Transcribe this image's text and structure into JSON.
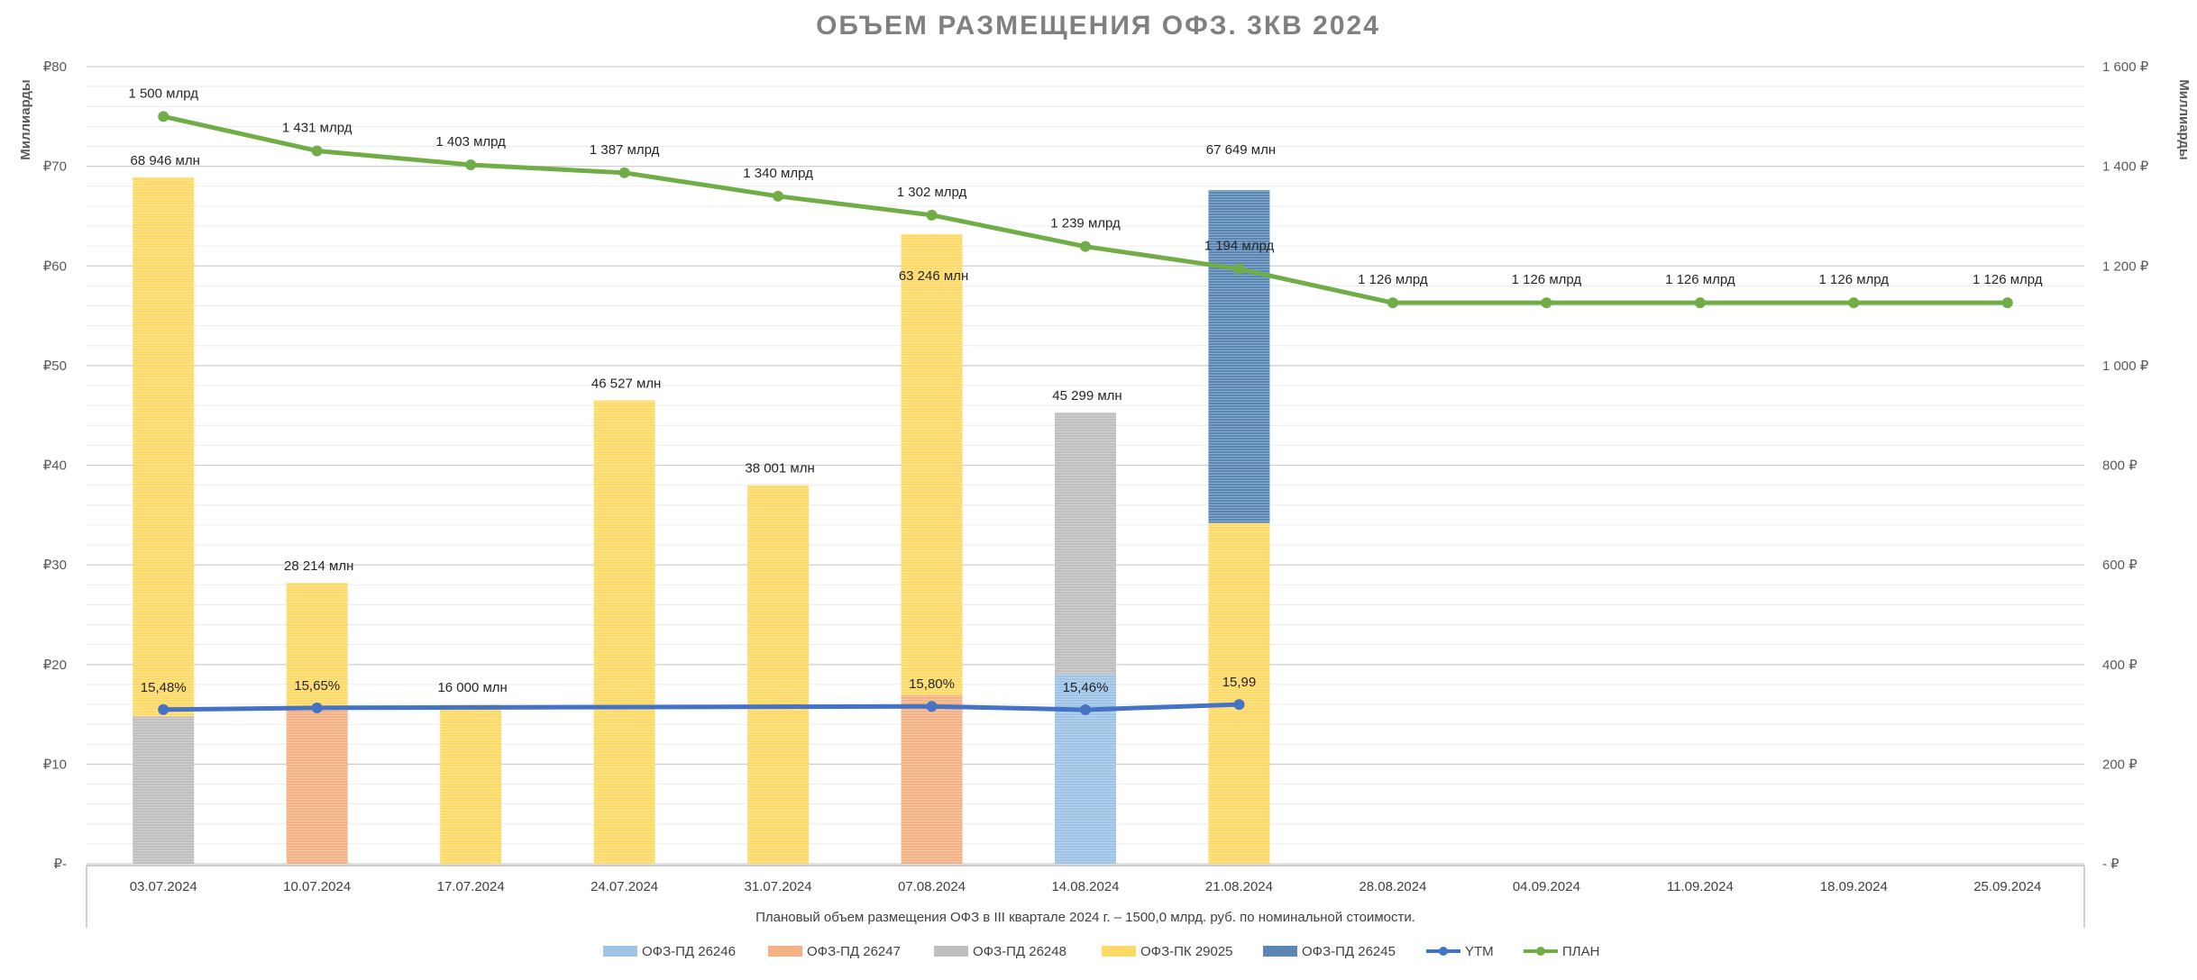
{
  "chart_data": {
    "type": "bar",
    "title": "ОБЪЕМ РАЗМЕЩЕНИЯ ОФЗ. 3КВ 2024",
    "ylabel_left": "Миллиарды",
    "ylabel_right": "Миллиарды",
    "ylim_left": [
      0,
      80
    ],
    "ylim_right": [
      0,
      1600
    ],
    "yticks_left": [
      {
        "value": 0,
        "label": "₽-"
      },
      {
        "value": 10,
        "label": "₽10"
      },
      {
        "value": 20,
        "label": "₽20"
      },
      {
        "value": 30,
        "label": "₽30"
      },
      {
        "value": 40,
        "label": "₽40"
      },
      {
        "value": 50,
        "label": "₽50"
      },
      {
        "value": 60,
        "label": "₽60"
      },
      {
        "value": 70,
        "label": "₽70"
      },
      {
        "value": 80,
        "label": "₽80"
      }
    ],
    "yticks_right": [
      {
        "value": 0,
        "label": "-  ₽"
      },
      {
        "value": 200,
        "label": "200 ₽"
      },
      {
        "value": 400,
        "label": "400 ₽"
      },
      {
        "value": 600,
        "label": "600 ₽"
      },
      {
        "value": 800,
        "label": "800 ₽"
      },
      {
        "value": 1000,
        "label": "1 000 ₽"
      },
      {
        "value": 1200,
        "label": "1 200 ₽"
      },
      {
        "value": 1400,
        "label": "1 400 ₽"
      },
      {
        "value": 1600,
        "label": "1 600 ₽"
      }
    ],
    "grid": true,
    "categories": [
      "03.07.2024",
      "10.07.2024",
      "17.07.2024",
      "24.07.2024",
      "31.07.2024",
      "07.08.2024",
      "14.08.2024",
      "21.08.2024",
      "28.08.2024",
      "04.09.2024",
      "11.09.2024",
      "18.09.2024",
      "25.09.2024"
    ],
    "bar_series": [
      {
        "name": "ОФЗ-ПД 26246",
        "color": "#9dc3e6",
        "values": [
          0,
          0,
          0,
          0,
          0,
          0,
          19.0,
          0,
          0,
          0,
          0,
          0,
          0
        ]
      },
      {
        "name": "ОФЗ-ПД 26247",
        "color": "#f4b183",
        "values": [
          0,
          15.6,
          0,
          0,
          0,
          16.9,
          0,
          0,
          0,
          0,
          0,
          0,
          0
        ]
      },
      {
        "name": "ОФЗ-ПД 26248",
        "color": "#bfbfbf",
        "values": [
          14.8,
          0,
          0,
          0,
          0,
          0,
          26.3,
          0,
          0,
          0,
          0,
          0,
          0
        ]
      },
      {
        "name": "ОФЗ-ПК 29025",
        "color": "#ffd966",
        "values": [
          54.1,
          12.6,
          16.0,
          46.5,
          38.0,
          46.3,
          0,
          34.2,
          0,
          0,
          0,
          0,
          0
        ]
      },
      {
        "name": "ОФЗ-ПД 26245",
        "color": "#5b87b5",
        "values": [
          0,
          0,
          0,
          0,
          0,
          0,
          0,
          33.4,
          0,
          0,
          0,
          0,
          0
        ]
      }
    ],
    "bar_totals": [
      "68 946 млн",
      "28 214 млн",
      "16 000 млн",
      "46 527 млн",
      "38 001 млн",
      "63 246 млн",
      "45 299 млн",
      "67 649 млн",
      "",
      "",
      "",
      "",
      ""
    ],
    "line_series": [
      {
        "name": "YTM",
        "color": "#4472c4",
        "axis": "left",
        "values": [
          15.48,
          15.65,
          null,
          null,
          null,
          15.8,
          15.46,
          15.99,
          null,
          null,
          null,
          null,
          null
        ],
        "labels": [
          "15,48%",
          "15,65%",
          "",
          "",
          "",
          "15,80%",
          "15,46%",
          "15,99",
          "",
          "",
          "",
          "",
          ""
        ]
      },
      {
        "name": "ПЛАН",
        "color": "#70ad47",
        "axis": "right",
        "values": [
          1500,
          1431,
          1403,
          1387,
          1340,
          1302,
          1239,
          1194,
          1126,
          1126,
          1126,
          1126,
          1126
        ],
        "labels": [
          "1 500 млрд",
          "1 431 млрд",
          "1 403 млрд",
          "1 387 млрд",
          "1 340 млрд",
          "1 302 млрд",
          "1 239 млрд",
          "1 194 млрд",
          "1 126 млрд",
          "1 126 млрд",
          "1 126 млрд",
          "1 126  млрд",
          "1 126 млрд"
        ]
      }
    ],
    "table_note": "Плановый объем размещения ОФЗ в III квартале 2024 г. – 1500,0 млрд. руб. по номинальной стоимости.",
    "legend_position": "bottom",
    "legend": [
      "ОФЗ-ПД 26246",
      "ОФЗ-ПД 26247",
      "ОФЗ-ПД 26248",
      "ОФЗ-ПК 29025",
      "ОФЗ-ПД 26245",
      "YTM",
      "ПЛАН"
    ]
  }
}
